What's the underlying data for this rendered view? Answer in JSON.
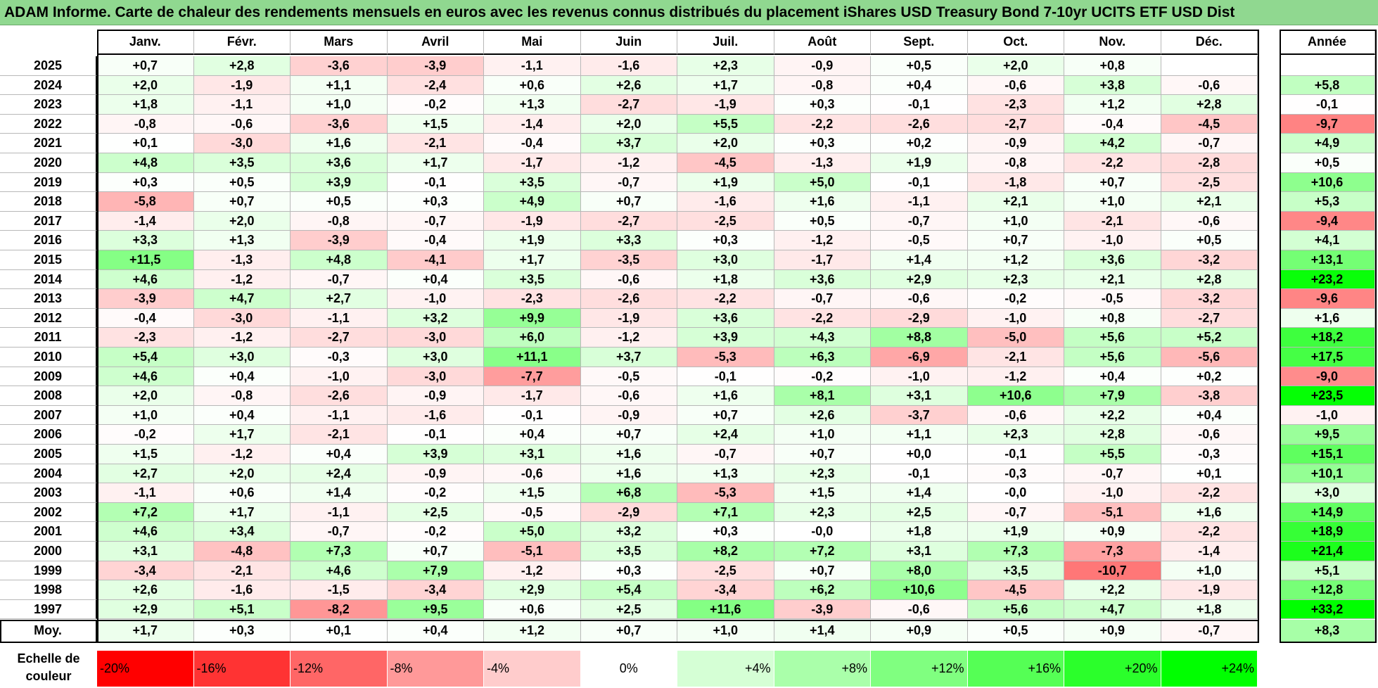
{
  "title": "ADAM Informe. Carte de chaleur des rendements mensuels en euros avec les revenus connus distribués du placement iShares USD Treasury Bond 7-10yr UCITS ETF USD Dist",
  "months": [
    "Janv.",
    "Févr.",
    "Mars",
    "Avril",
    "Mai",
    "Juin",
    "Juil.",
    "Août",
    "Sept.",
    "Oct.",
    "Nov.",
    "Déc."
  ],
  "annual_header": "Année",
  "average_label": "Moy.",
  "scale": {
    "label": "Echelle de couleur",
    "steps": [
      "-20%",
      "-16%",
      "-12%",
      "-8%",
      "-4%",
      "0%",
      "+4%",
      "+8%",
      "+12%",
      "+16%",
      "+20%",
      "+24%"
    ],
    "negative_color": "#ff0000",
    "neutral_color": "#ffffff",
    "positive_color": "#00ff00"
  },
  "chart_data": {
    "type": "heatmap",
    "title": "ADAM Informe. Carte de chaleur des rendements mensuels en euros avec les revenus connus distribués du placement iShares USD Treasury Bond 7-10yr UCITS ETF USD Dist",
    "columns": [
      "Janv.",
      "Févr.",
      "Mars",
      "Avril",
      "Mai",
      "Juin",
      "Juil.",
      "Août",
      "Sept.",
      "Oct.",
      "Nov.",
      "Déc.",
      "Année"
    ],
    "rows": [
      {
        "year": "2025",
        "values": [
          "+0,7",
          "+2,8",
          "-3,6",
          "-3,9",
          "-1,1",
          "-1,6",
          "+2,3",
          "-0,9",
          "+0,5",
          "+2,0",
          "+0,8",
          "",
          ""
        ]
      },
      {
        "year": "2024",
        "values": [
          "+2,0",
          "-1,9",
          "+1,1",
          "-2,4",
          "+0,6",
          "+2,6",
          "+1,7",
          "-0,8",
          "+0,4",
          "-0,6",
          "+3,8",
          "-0,6",
          "+5,8"
        ]
      },
      {
        "year": "2023",
        "values": [
          "+1,8",
          "-1,1",
          "+1,0",
          "-0,2",
          "+1,3",
          "-2,7",
          "-1,9",
          "+0,3",
          "-0,1",
          "-2,3",
          "+1,2",
          "+2,8",
          "-0,1"
        ]
      },
      {
        "year": "2022",
        "values": [
          "-0,8",
          "-0,6",
          "-3,6",
          "+1,5",
          "-1,4",
          "+2,0",
          "+5,5",
          "-2,2",
          "-2,6",
          "-2,7",
          "-0,4",
          "-4,5",
          "-9,7"
        ]
      },
      {
        "year": "2021",
        "values": [
          "+0,1",
          "-3,0",
          "+1,6",
          "-2,1",
          "-0,4",
          "+3,7",
          "+2,0",
          "+0,3",
          "+0,2",
          "-0,9",
          "+4,2",
          "-0,7",
          "+4,9"
        ]
      },
      {
        "year": "2020",
        "values": [
          "+4,8",
          "+3,5",
          "+3,6",
          "+1,7",
          "-1,7",
          "-1,2",
          "-4,5",
          "-1,3",
          "+1,9",
          "-0,8",
          "-2,2",
          "-2,8",
          "+0,5"
        ]
      },
      {
        "year": "2019",
        "values": [
          "+0,3",
          "+0,5",
          "+3,9",
          "-0,1",
          "+3,5",
          "-0,7",
          "+1,9",
          "+5,0",
          "-0,1",
          "-1,8",
          "+0,7",
          "-2,5",
          "+10,6"
        ]
      },
      {
        "year": "2018",
        "values": [
          "-5,8",
          "+0,7",
          "+0,5",
          "+0,3",
          "+4,9",
          "+0,7",
          "-1,6",
          "+1,6",
          "-1,1",
          "+2,1",
          "+1,0",
          "+2,1",
          "+5,3"
        ]
      },
      {
        "year": "2017",
        "values": [
          "-1,4",
          "+2,0",
          "-0,8",
          "-0,7",
          "-1,9",
          "-2,7",
          "-2,5",
          "+0,5",
          "-0,7",
          "+1,0",
          "-2,1",
          "-0,6",
          "-9,4"
        ]
      },
      {
        "year": "2016",
        "values": [
          "+3,3",
          "+1,3",
          "-3,9",
          "-0,4",
          "+1,9",
          "+3,3",
          "+0,3",
          "-1,2",
          "-0,5",
          "+0,7",
          "-1,0",
          "+0,5",
          "+4,1"
        ]
      },
      {
        "year": "2015",
        "values": [
          "+11,5",
          "-1,3",
          "+4,8",
          "-4,1",
          "+1,7",
          "-3,5",
          "+3,0",
          "-1,7",
          "+1,4",
          "+1,2",
          "+3,6",
          "-3,2",
          "+13,1"
        ]
      },
      {
        "year": "2014",
        "values": [
          "+4,6",
          "-1,2",
          "-0,7",
          "+0,4",
          "+3,5",
          "-0,6",
          "+1,8",
          "+3,6",
          "+2,9",
          "+2,3",
          "+2,1",
          "+2,8",
          "+23,2"
        ]
      },
      {
        "year": "2013",
        "values": [
          "-3,9",
          "+4,7",
          "+2,7",
          "-1,0",
          "-2,3",
          "-2,6",
          "-2,2",
          "-0,7",
          "-0,6",
          "-0,2",
          "-0,5",
          "-3,2",
          "-9,6"
        ]
      },
      {
        "year": "2012",
        "values": [
          "-0,4",
          "-3,0",
          "-1,1",
          "+3,2",
          "+9,9",
          "-1,9",
          "+3,6",
          "-2,2",
          "-2,9",
          "-1,0",
          "+0,8",
          "-2,7",
          "+1,6"
        ]
      },
      {
        "year": "2011",
        "values": [
          "-2,3",
          "-1,2",
          "-2,7",
          "-3,0",
          "+6,0",
          "-1,2",
          "+3,9",
          "+4,3",
          "+8,8",
          "-5,0",
          "+5,6",
          "+5,2",
          "+18,2"
        ]
      },
      {
        "year": "2010",
        "values": [
          "+5,4",
          "+3,0",
          "-0,3",
          "+3,0",
          "+11,1",
          "+3,7",
          "-5,3",
          "+6,3",
          "-6,9",
          "-2,1",
          "+5,6",
          "-5,6",
          "+17,5"
        ]
      },
      {
        "year": "2009",
        "values": [
          "+4,6",
          "+0,4",
          "-1,0",
          "-3,0",
          "-7,7",
          "-0,5",
          "-0,1",
          "-0,2",
          "-1,0",
          "-1,2",
          "+0,4",
          "+0,2",
          "-9,0"
        ]
      },
      {
        "year": "2008",
        "values": [
          "+2,0",
          "-0,8",
          "-2,6",
          "-0,9",
          "-1,7",
          "-0,6",
          "+1,6",
          "+8,1",
          "+3,1",
          "+10,6",
          "+7,9",
          "-3,8",
          "+23,5"
        ]
      },
      {
        "year": "2007",
        "values": [
          "+1,0",
          "+0,4",
          "-1,1",
          "-1,6",
          "-0,1",
          "-0,9",
          "+0,7",
          "+2,6",
          "-3,7",
          "-0,6",
          "+2,2",
          "+0,4",
          "-1,0"
        ]
      },
      {
        "year": "2006",
        "values": [
          "-0,2",
          "+1,7",
          "-2,1",
          "-0,1",
          "+0,4",
          "+0,7",
          "+2,4",
          "+1,0",
          "+1,1",
          "+2,3",
          "+2,8",
          "-0,6",
          "+9,5"
        ]
      },
      {
        "year": "2005",
        "values": [
          "+1,5",
          "-1,2",
          "+0,4",
          "+3,9",
          "+3,1",
          "+1,6",
          "-0,7",
          "+0,7",
          "+0,0",
          "-0,1",
          "+5,5",
          "-0,3",
          "+15,1"
        ]
      },
      {
        "year": "2004",
        "values": [
          "+2,7",
          "+2,0",
          "+2,4",
          "-0,9",
          "-0,6",
          "+1,6",
          "+1,3",
          "+2,3",
          "-0,1",
          "-0,3",
          "-0,7",
          "+0,1",
          "+10,1"
        ]
      },
      {
        "year": "2003",
        "values": [
          "-1,1",
          "+0,6",
          "+1,4",
          "-0,2",
          "+1,5",
          "+6,8",
          "-5,3",
          "+1,5",
          "+1,4",
          "-0,0",
          "-1,0",
          "-2,2",
          "+3,0"
        ]
      },
      {
        "year": "2002",
        "values": [
          "+7,2",
          "+1,7",
          "-1,1",
          "+2,5",
          "-0,5",
          "-2,9",
          "+7,1",
          "+2,3",
          "+2,5",
          "-0,7",
          "-5,1",
          "+1,6",
          "+14,9"
        ]
      },
      {
        "year": "2001",
        "values": [
          "+4,6",
          "+3,4",
          "-0,7",
          "-0,2",
          "+5,0",
          "+3,2",
          "+0,3",
          "-0,0",
          "+1,8",
          "+1,9",
          "+0,9",
          "-2,2",
          "+18,9"
        ]
      },
      {
        "year": "2000",
        "values": [
          "+3,1",
          "-4,8",
          "+7,3",
          "+0,7",
          "-5,1",
          "+3,5",
          "+8,2",
          "+7,2",
          "+3,1",
          "+7,3",
          "-7,3",
          "-1,4",
          "+21,4"
        ]
      },
      {
        "year": "1999",
        "values": [
          "-3,4",
          "-2,1",
          "+4,6",
          "+7,9",
          "-1,2",
          "+0,3",
          "-2,5",
          "+0,7",
          "+8,0",
          "+3,5",
          "-10,7",
          "+1,0",
          "+5,1"
        ]
      },
      {
        "year": "1998",
        "values": [
          "+2,6",
          "-1,6",
          "-1,5",
          "-3,4",
          "+2,9",
          "+5,4",
          "-3,4",
          "+6,2",
          "+10,6",
          "-4,5",
          "+2,2",
          "-1,9",
          "+12,8"
        ]
      },
      {
        "year": "1997",
        "values": [
          "+2,9",
          "+5,1",
          "-8,2",
          "+9,5",
          "+0,6",
          "+2,5",
          "+11,6",
          "-3,9",
          "-0,6",
          "+5,6",
          "+4,7",
          "+1,8",
          "+33,2"
        ]
      }
    ],
    "averages": [
      "+1,7",
      "+0,3",
      "+0,1",
      "+0,4",
      "+1,2",
      "+0,7",
      "+1,0",
      "+1,4",
      "+0,9",
      "+0,5",
      "+0,9",
      "-0,7",
      "+8,3"
    ],
    "color_scale": {
      "min": -20,
      "max": 24,
      "negative": "#ff0000",
      "neutral": "#ffffff",
      "positive": "#00ff00"
    }
  }
}
